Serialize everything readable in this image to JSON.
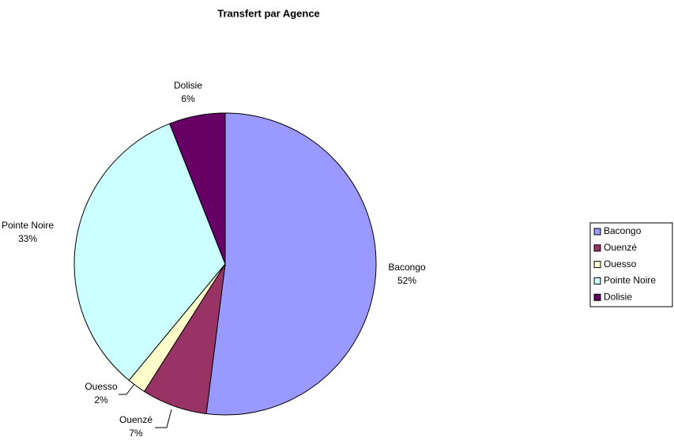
{
  "chart_data": {
    "type": "pie",
    "title": "Transfert par Agence",
    "categories": [
      "Bacongo",
      "Ouenzé",
      "Ouesso",
      "Pointe Noire",
      "Dolisie"
    ],
    "values": [
      52,
      7,
      2,
      33,
      6
    ],
    "value_labels": [
      "52%",
      "7%",
      "2%",
      "33%",
      "6%"
    ],
    "colors": [
      "#9999ff",
      "#993366",
      "#ffffcc",
      "#ccffff",
      "#660066"
    ],
    "legend": "right"
  }
}
